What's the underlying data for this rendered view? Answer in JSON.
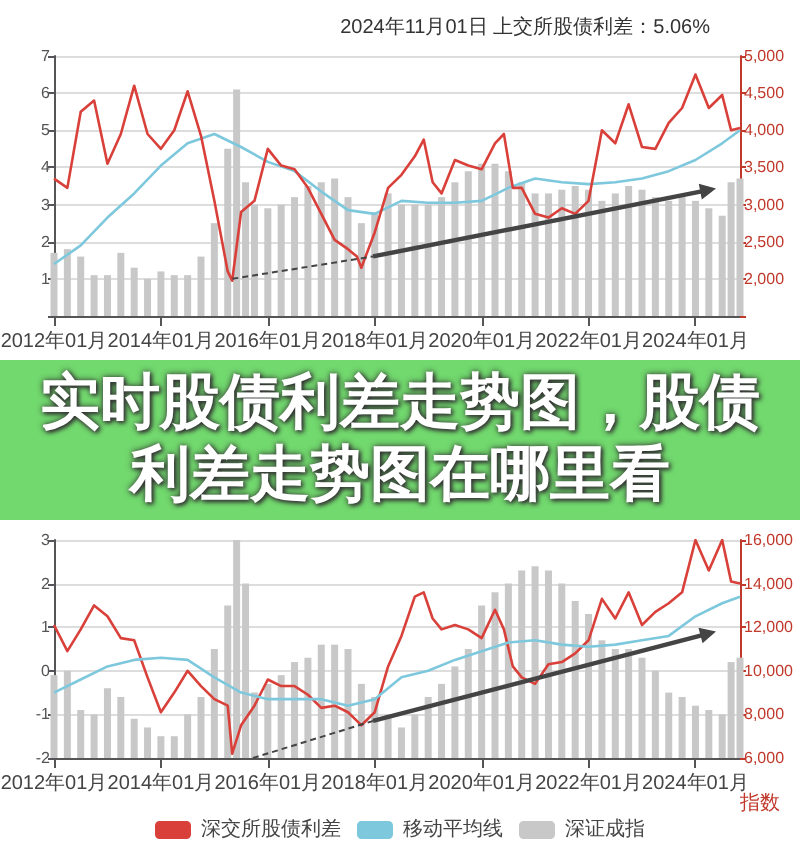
{
  "chart_data": [
    {
      "type": "line",
      "title": "2024年11月01日 上交所股债利差：5.06%",
      "marker": "none",
      "grid": "y",
      "xlim": [
        "2012-01",
        "2024-11"
      ],
      "xticks": [
        {
          "value": "2012-01",
          "label": "2012年01月"
        },
        {
          "value": "2014-01",
          "label": "2014年01月"
        },
        {
          "value": "2016-01",
          "label": "2016年01月"
        },
        {
          "value": "2018-01",
          "label": "2018年01月"
        },
        {
          "value": "2020-01",
          "label": "2020年01月"
        },
        {
          "value": "2022-01",
          "label": "2022年01月"
        },
        {
          "value": "2024-01",
          "label": "2024年01月"
        }
      ],
      "ylim": [
        0,
        7
      ],
      "yticks": [
        1,
        2,
        3,
        4,
        5,
        6,
        7
      ],
      "y2lim": [
        1500,
        5000
      ],
      "y2ticks": [
        {
          "value": 2000,
          "label": "2,000"
        },
        {
          "value": 2500,
          "label": "2,500"
        },
        {
          "value": 3000,
          "label": "3,000"
        },
        {
          "value": 3500,
          "label": "3,500"
        },
        {
          "value": 4000,
          "label": "4,000"
        },
        {
          "value": 4500,
          "label": "4,500"
        },
        {
          "value": 5000,
          "label": "5,000"
        }
      ],
      "series": [
        {
          "type": "bar",
          "axis": "y2",
          "color": "#c8c8c8",
          "x": [
            "2012-01",
            "2012-04",
            "2012-07",
            "2012-10",
            "2013-01",
            "2013-04",
            "2013-07",
            "2013-10",
            "2014-01",
            "2014-04",
            "2014-07",
            "2014-10",
            "2015-01",
            "2015-04",
            "2015-06",
            "2015-08",
            "2015-10",
            "2016-01",
            "2016-04",
            "2016-07",
            "2016-10",
            "2017-01",
            "2017-04",
            "2017-07",
            "2017-10",
            "2018-01",
            "2018-04",
            "2018-07",
            "2018-10",
            "2019-01",
            "2019-04",
            "2019-07",
            "2019-10",
            "2020-01",
            "2020-04",
            "2020-07",
            "2020-10",
            "2021-01",
            "2021-04",
            "2021-07",
            "2021-10",
            "2022-01",
            "2022-04",
            "2022-07",
            "2022-10",
            "2023-01",
            "2023-04",
            "2023-07",
            "2023-10",
            "2024-01",
            "2024-04",
            "2024-07",
            "2024-09",
            "2024-11"
          ],
          "values": [
            2350,
            2400,
            2300,
            2050,
            2050,
            2350,
            2150,
            2000,
            2100,
            2050,
            2050,
            2300,
            2750,
            3750,
            4550,
            3300,
            3000,
            2950,
            3000,
            3100,
            3250,
            3300,
            3350,
            3100,
            2750,
            2900,
            3150,
            3000,
            3000,
            3000,
            3100,
            3300,
            3450,
            3550,
            3550,
            3450,
            3300,
            3150,
            3150,
            3200,
            3250,
            3200,
            3050,
            3150,
            3250,
            3200,
            3100,
            3050,
            3100,
            3050,
            2950,
            2850,
            3300,
            3350
          ]
        },
        {
          "type": "line",
          "color": "#7ec8dd",
          "x": [
            "2012-01",
            "2012-07",
            "2013-01",
            "2013-07",
            "2014-01",
            "2014-07",
            "2015-01",
            "2015-07",
            "2016-01",
            "2016-07",
            "2017-01",
            "2017-07",
            "2018-01",
            "2018-07",
            "2019-01",
            "2019-07",
            "2020-01",
            "2020-07",
            "2021-01",
            "2021-07",
            "2022-01",
            "2022-07",
            "2023-01",
            "2023-07",
            "2024-01",
            "2024-07",
            "2024-11"
          ],
          "values": [
            1.4,
            1.9,
            2.65,
            3.3,
            4.05,
            4.65,
            4.9,
            4.55,
            4.15,
            3.9,
            3.35,
            2.85,
            2.75,
            3.1,
            3.05,
            3.05,
            3.1,
            3.45,
            3.7,
            3.6,
            3.55,
            3.6,
            3.7,
            3.9,
            4.2,
            4.65,
            5.0
          ]
        },
        {
          "type": "line",
          "color": "#d9403a",
          "x": [
            "2012-01",
            "2012-04",
            "2012-07",
            "2012-10",
            "2013-01",
            "2013-04",
            "2013-07",
            "2013-10",
            "2014-01",
            "2014-04",
            "2014-07",
            "2014-10",
            "2015-01",
            "2015-04",
            "2015-05",
            "2015-07",
            "2015-10",
            "2016-01",
            "2016-04",
            "2016-07",
            "2016-10",
            "2017-01",
            "2017-04",
            "2017-07",
            "2017-09",
            "2017-10",
            "2018-01",
            "2018-04",
            "2018-07",
            "2018-10",
            "2018-12",
            "2019-02",
            "2019-04",
            "2019-07",
            "2019-10",
            "2020-01",
            "2020-04",
            "2020-06",
            "2020-08",
            "2020-10",
            "2021-01",
            "2021-04",
            "2021-07",
            "2021-10",
            "2022-01",
            "2022-04",
            "2022-07",
            "2022-10",
            "2023-01",
            "2023-04",
            "2023-07",
            "2023-10",
            "2024-01",
            "2024-04",
            "2024-07",
            "2024-09",
            "2024-11"
          ],
          "values": [
            3.7,
            3.45,
            5.5,
            5.8,
            4.1,
            4.9,
            6.2,
            4.9,
            4.5,
            5.0,
            6.05,
            4.85,
            3.1,
            1.2,
            0.95,
            2.8,
            3.1,
            4.5,
            4.05,
            3.95,
            3.45,
            2.75,
            2.05,
            1.8,
            1.6,
            1.3,
            2.25,
            3.45,
            3.8,
            4.3,
            4.75,
            3.6,
            3.3,
            4.2,
            4.05,
            3.95,
            4.65,
            4.9,
            3.45,
            3.45,
            2.75,
            2.65,
            2.9,
            2.75,
            3.1,
            5.0,
            4.65,
            5.7,
            4.55,
            4.5,
            5.2,
            5.6,
            6.5,
            5.6,
            5.95,
            5.0,
            5.06
          ]
        }
      ]
    },
    {
      "type": "other",
      "title": "实时股债利差走势图，股债利差走势图在哪里看"
    },
    {
      "type": "line",
      "marker": "none",
      "grid": "y",
      "legend": "bottom",
      "y2label": "指数",
      "xlim": [
        "2012-01",
        "2024-11"
      ],
      "xticks": [
        {
          "value": "2012-01",
          "label": "2012年01月"
        },
        {
          "value": "2014-01",
          "label": "2014年01月"
        },
        {
          "value": "2016-01",
          "label": "2016年01月"
        },
        {
          "value": "2018-01",
          "label": "2018年01月"
        },
        {
          "value": "2020-01",
          "label": "2020年01月"
        },
        {
          "value": "2022-01",
          "label": "2022年01月"
        },
        {
          "value": "2024-01",
          "label": "2024年01月"
        }
      ],
      "ylim": [
        -2,
        3
      ],
      "yticks": [
        -2,
        -1,
        0,
        1,
        2,
        3
      ],
      "y2lim": [
        6000,
        16000
      ],
      "y2ticks": [
        {
          "value": 6000,
          "label": "6,000"
        },
        {
          "value": 8000,
          "label": "8,000"
        },
        {
          "value": 10000,
          "label": "10,000"
        },
        {
          "value": 12000,
          "label": "12,000"
        },
        {
          "value": 14000,
          "label": "14,000"
        },
        {
          "value": 16000,
          "label": "16,000"
        }
      ],
      "series": [
        {
          "name": "深交所股债利差",
          "type": "line",
          "color": "#d9403a",
          "x": [
            "2012-01",
            "2012-04",
            "2012-07",
            "2012-10",
            "2013-01",
            "2013-04",
            "2013-07",
            "2013-10",
            "2014-01",
            "2014-04",
            "2014-07",
            "2014-10",
            "2015-01",
            "2015-04",
            "2015-05",
            "2015-07",
            "2015-10",
            "2016-01",
            "2016-04",
            "2016-07",
            "2016-10",
            "2017-01",
            "2017-04",
            "2017-07",
            "2017-09",
            "2017-10",
            "2018-01",
            "2018-04",
            "2018-07",
            "2018-10",
            "2018-12",
            "2019-02",
            "2019-04",
            "2019-07",
            "2019-10",
            "2020-01",
            "2020-04",
            "2020-06",
            "2020-08",
            "2020-10",
            "2021-01",
            "2021-04",
            "2021-07",
            "2021-10",
            "2022-01",
            "2022-04",
            "2022-07",
            "2022-10",
            "2023-01",
            "2023-04",
            "2023-07",
            "2023-10",
            "2024-01",
            "2024-04",
            "2024-07",
            "2024-09",
            "2024-11"
          ],
          "values": [
            1.05,
            0.45,
            0.95,
            1.5,
            1.25,
            0.75,
            0.7,
            -0.15,
            -0.95,
            -0.5,
            0.0,
            -0.35,
            -0.65,
            -0.8,
            -1.9,
            -1.25,
            -0.8,
            -0.2,
            -0.35,
            -0.35,
            -0.55,
            -0.85,
            -0.8,
            -0.95,
            -1.15,
            -1.25,
            -0.95,
            0.1,
            0.8,
            1.7,
            1.8,
            1.2,
            0.95,
            1.05,
            0.95,
            0.75,
            1.4,
            0.95,
            0.1,
            -0.15,
            -0.3,
            0.15,
            0.2,
            0.4,
            0.7,
            1.65,
            1.2,
            1.8,
            1.05,
            1.35,
            1.55,
            1.8,
            3.0,
            2.3,
            3.0,
            2.05,
            2.0
          ]
        },
        {
          "name": "移动平均线",
          "type": "line",
          "color": "#7ec8dd",
          "x": [
            "2012-01",
            "2012-07",
            "2013-01",
            "2013-07",
            "2014-01",
            "2014-07",
            "2015-01",
            "2015-07",
            "2016-01",
            "2016-07",
            "2017-01",
            "2017-07",
            "2018-01",
            "2018-07",
            "2019-01",
            "2019-07",
            "2020-01",
            "2020-07",
            "2021-01",
            "2021-07",
            "2022-01",
            "2022-07",
            "2023-01",
            "2023-07",
            "2024-01",
            "2024-07",
            "2024-11"
          ],
          "values": [
            -0.5,
            -0.2,
            0.1,
            0.25,
            0.3,
            0.25,
            -0.15,
            -0.5,
            -0.65,
            -0.65,
            -0.65,
            -0.8,
            -0.65,
            -0.15,
            0.0,
            0.25,
            0.45,
            0.65,
            0.7,
            0.6,
            0.55,
            0.6,
            0.7,
            0.8,
            1.25,
            1.55,
            1.7
          ]
        },
        {
          "name": "深证成指",
          "type": "bar",
          "axis": "y2",
          "color": "#c8c8c8",
          "x": [
            "2012-01",
            "2012-04",
            "2012-07",
            "2012-10",
            "2013-01",
            "2013-04",
            "2013-07",
            "2013-10",
            "2014-01",
            "2014-04",
            "2014-07",
            "2014-10",
            "2015-01",
            "2015-04",
            "2015-06",
            "2015-08",
            "2015-10",
            "2016-01",
            "2016-04",
            "2016-07",
            "2016-10",
            "2017-01",
            "2017-04",
            "2017-07",
            "2017-10",
            "2018-01",
            "2018-04",
            "2018-07",
            "2018-10",
            "2019-01",
            "2019-04",
            "2019-07",
            "2019-10",
            "2020-01",
            "2020-04",
            "2020-07",
            "2020-10",
            "2021-01",
            "2021-04",
            "2021-07",
            "2021-10",
            "2022-01",
            "2022-04",
            "2022-07",
            "2022-10",
            "2023-01",
            "2023-04",
            "2023-07",
            "2023-10",
            "2024-01",
            "2024-04",
            "2024-07",
            "2024-09",
            "2024-11"
          ],
          "values": [
            9800,
            10000,
            8200,
            8000,
            9200,
            8800,
            7800,
            7400,
            7000,
            7000,
            8000,
            8800,
            11000,
            13000,
            16000,
            14000,
            9000,
            9400,
            9800,
            10400,
            10600,
            11200,
            11200,
            11000,
            9400,
            8800,
            8000,
            7400,
            8000,
            8800,
            9400,
            10200,
            11000,
            13000,
            13600,
            14000,
            14600,
            14800,
            14600,
            14000,
            13200,
            12600,
            11400,
            11000,
            11000,
            10600,
            10000,
            9000,
            8800,
            8400,
            8200,
            8000,
            10400,
            10600
          ]
        }
      ]
    }
  ]
}
